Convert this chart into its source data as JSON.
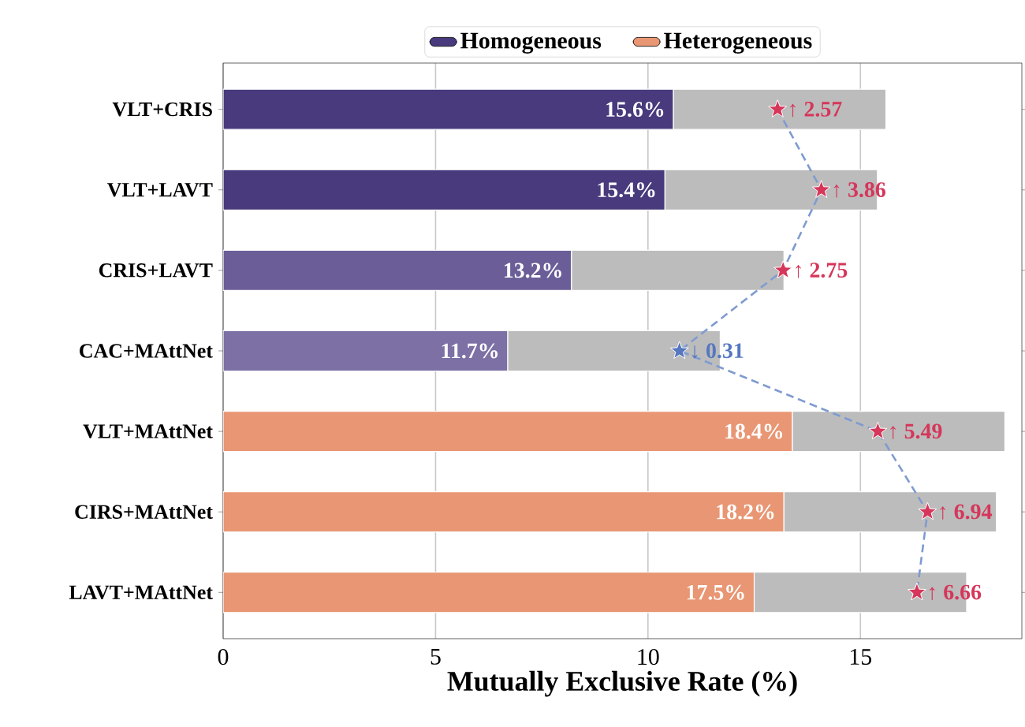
{
  "chart_data": {
    "type": "bar",
    "orientation": "horizontal",
    "stacked": true,
    "categories": [
      "VLT+CRIS",
      "VLT+LAVT",
      "CRIS+LAVT",
      "CAC+MAttNet",
      "VLT+MAttNet",
      "CIRS+MAttNet",
      "LAVT+MAttNet"
    ],
    "series": [
      {
        "name": "Homogeneous",
        "color": "#483a7d",
        "colors": [
          "#483a7d",
          "#483a7d",
          "#6b5e98",
          "#7d70a5",
          null,
          null,
          null
        ],
        "values": [
          10.6,
          10.4,
          8.2,
          6.7,
          null,
          null,
          null
        ]
      },
      {
        "name": "Heterogeneous",
        "color": "#e89673",
        "values": [
          null,
          null,
          null,
          null,
          13.4,
          13.2,
          12.5
        ]
      },
      {
        "color": "#bcbcbc",
        "values": [
          5.0,
          5.0,
          5.0,
          5.0,
          5.0,
          5.0,
          5.0
        ]
      },
      {
        "type": "line",
        "x": [
          "VLT+CRIS",
          "VLT+LAVT",
          "CRIS+LAVT",
          "CAC+MAttNet",
          "VLT+MAttNet",
          "CIRS+MAttNet",
          "LAVT+MAttNet"
        ],
        "values": [
          13.05,
          14.08,
          13.18,
          10.74,
          15.41,
          16.58,
          16.33
        ],
        "color": "#7f9bd0",
        "colors": [
          "#d6365a",
          "#d6365a",
          "#d6365a",
          "#5577c0",
          "#d6365a",
          "#d6365a",
          "#d6365a"
        ],
        "marker": "star",
        "line_style": "dashed"
      }
    ],
    "totals": [
      "15.6%",
      "15.4%",
      "13.2%",
      "11.7%",
      "18.4%",
      "18.2%",
      "17.5%"
    ],
    "annotations": [
      {
        "text": "↑ 2.57",
        "x": 13.05,
        "y": "VLT+CRIS"
      },
      {
        "text": "↑ 3.86",
        "x": 14.08,
        "y": "VLT+LAVT"
      },
      {
        "text": "↑ 2.75",
        "x": 13.18,
        "y": "CRIS+LAVT"
      },
      {
        "text": "↓ 0.31",
        "x": 10.74,
        "y": "CAC+MAttNet"
      },
      {
        "text": "↑ 5.49",
        "x": 15.41,
        "y": "VLT+MAttNet"
      },
      {
        "text": "↑ 6.94",
        "x": 16.58,
        "y": "CIRS+MAttNet"
      },
      {
        "text": "↑ 6.66",
        "x": 16.33,
        "y": "LAVT+MAttNet"
      }
    ],
    "xlabel": "Mutually Exclusive Rate (%)",
    "xlim": [
      0,
      18.8
    ],
    "xticks": [
      0,
      5,
      10,
      15
    ],
    "grid": "x",
    "legend": "top"
  }
}
